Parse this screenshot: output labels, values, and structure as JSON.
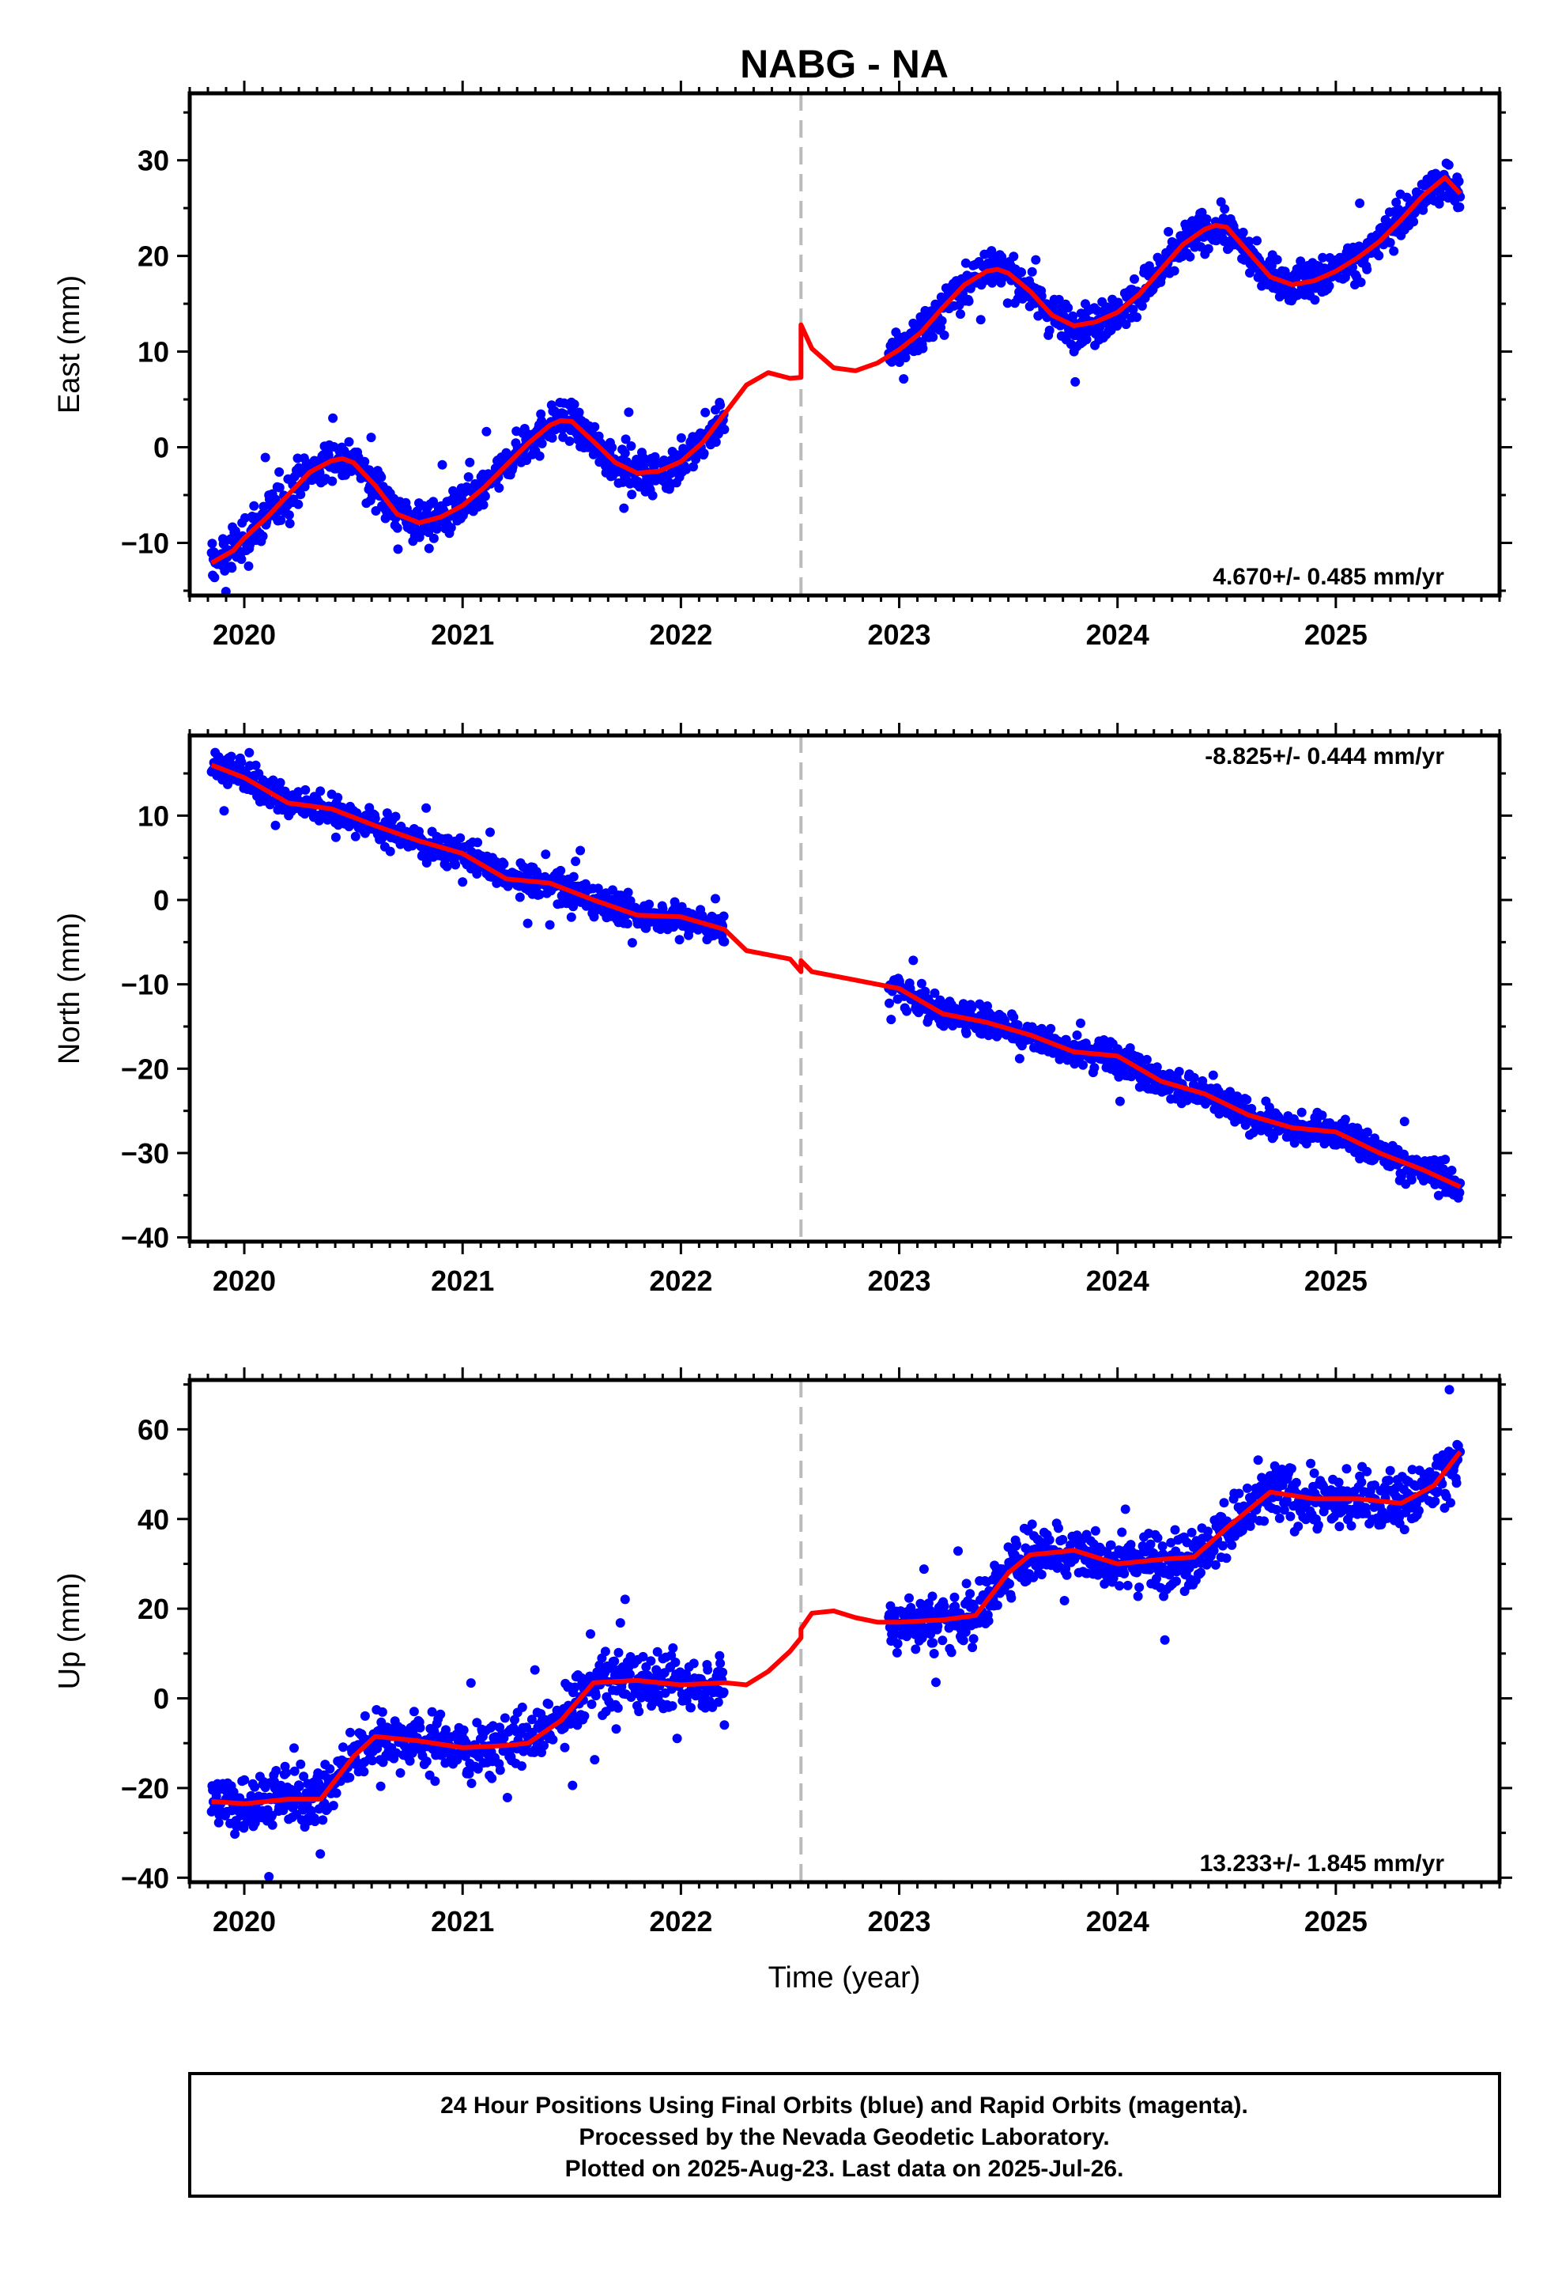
{
  "title": "NABG - NA",
  "x_axis_label": "Time (year)",
  "footer": {
    "line1": "24 Hour Positions Using Final Orbits (blue) and Rapid Orbits (magenta).",
    "line2": "Processed by the Nevada Geodetic Laboratory.",
    "line3": "Plotted on 2025-Aug-23. Last data on 2025-Jul-26."
  },
  "colors": {
    "final_orbits": "#0000ff",
    "model": "#ff0000",
    "equipment_change": "#bbbbbb",
    "frame": "#000000"
  },
  "chart_data": [
    {
      "type": "scatter",
      "component": "East",
      "ylabel": "East (mm)",
      "rate": "4.670+/- 0.485 mm/yr",
      "rate_position": "bottom-right",
      "xlim": [
        2019.75,
        2025.75
      ],
      "ylim": [
        -15.5,
        37
      ],
      "xticks": [
        2020,
        2021,
        2022,
        2023,
        2024,
        2025
      ],
      "yticks": [
        -10,
        0,
        10,
        20,
        30
      ],
      "offset_marker_x": 2022.55,
      "data_gap": [
        2022.2,
        2022.95
      ],
      "series": [
        {
          "style": "points",
          "x": [
            2019.85,
            2019.95,
            2020.0,
            2020.1,
            2020.2,
            2020.3,
            2020.4,
            2020.45,
            2020.5,
            2020.6,
            2020.7,
            2020.8,
            2020.9,
            2021.0,
            2021.1,
            2021.2,
            2021.3,
            2021.4,
            2021.45,
            2021.5,
            2021.6,
            2021.7,
            2021.8,
            2021.9,
            2022.0,
            2022.1,
            2022.2,
            2023.0,
            2023.1,
            2023.2,
            2023.3,
            2023.4,
            2023.45,
            2023.5,
            2023.6,
            2023.7,
            2023.8,
            2023.9,
            2024.0,
            2024.1,
            2024.2,
            2024.3,
            2024.4,
            2024.45,
            2024.5,
            2024.6,
            2024.7,
            2024.8,
            2024.9,
            2025.0,
            2025.1,
            2025.2,
            2025.3,
            2025.4,
            2025.5,
            2025.57
          ],
          "y": [
            -12.1,
            -10.8,
            -9.5,
            -7.4,
            -5.0,
            -2.6,
            -1.4,
            -1.2,
            -1.6,
            -4.0,
            -7.0,
            -7.9,
            -7.3,
            -6.1,
            -4.2,
            -1.9,
            0.4,
            2.3,
            2.8,
            2.7,
            0.6,
            -1.6,
            -2.7,
            -2.5,
            -1.5,
            0.5,
            3.5,
            10.2,
            12.0,
            14.6,
            17.0,
            18.4,
            18.6,
            18.2,
            16.3,
            13.8,
            12.7,
            13.1,
            14.1,
            16.0,
            18.6,
            21.2,
            22.8,
            23.2,
            23.0,
            20.4,
            17.8,
            17.0,
            17.4,
            18.4,
            19.8,
            21.5,
            23.8,
            26.3,
            28.2,
            26.5
          ]
        },
        {
          "style": "model_line",
          "x": [
            2019.85,
            2019.95,
            2020.0,
            2020.1,
            2020.2,
            2020.3,
            2020.4,
            2020.45,
            2020.5,
            2020.6,
            2020.7,
            2020.8,
            2020.9,
            2021.0,
            2021.1,
            2021.2,
            2021.3,
            2021.4,
            2021.45,
            2021.5,
            2021.6,
            2021.7,
            2021.8,
            2021.9,
            2022.0,
            2022.1,
            2022.2,
            2022.3,
            2022.4,
            2022.5,
            2022.55,
            2022.55,
            2022.6,
            2022.7,
            2022.8,
            2022.9,
            2023.0,
            2023.1,
            2023.2,
            2023.3,
            2023.4,
            2023.45,
            2023.5,
            2023.6,
            2023.7,
            2023.8,
            2023.9,
            2024.0,
            2024.1,
            2024.2,
            2024.3,
            2024.4,
            2024.45,
            2024.5,
            2024.6,
            2024.7,
            2024.8,
            2024.9,
            2025.0,
            2025.1,
            2025.2,
            2025.3,
            2025.4,
            2025.5,
            2025.57
          ],
          "y": [
            -12.1,
            -10.8,
            -9.5,
            -7.4,
            -5.0,
            -2.6,
            -1.4,
            -1.2,
            -1.6,
            -4.0,
            -7.0,
            -7.9,
            -7.3,
            -6.1,
            -4.2,
            -1.9,
            0.4,
            2.3,
            2.8,
            2.7,
            0.6,
            -1.6,
            -2.7,
            -2.5,
            -1.5,
            0.5,
            3.5,
            6.5,
            7.8,
            7.2,
            7.3,
            12.8,
            10.3,
            8.3,
            8.0,
            8.8,
            10.2,
            12.0,
            14.6,
            17.0,
            18.4,
            18.6,
            18.2,
            16.3,
            13.8,
            12.7,
            13.1,
            14.1,
            16.0,
            18.6,
            21.2,
            22.8,
            23.2,
            23.0,
            20.4,
            17.8,
            17.0,
            17.4,
            18.4,
            19.8,
            21.5,
            23.8,
            26.3,
            28.2,
            26.5
          ]
        }
      ]
    },
    {
      "type": "scatter",
      "component": "North",
      "ylabel": "North (mm)",
      "rate": "-8.825+/- 0.444 mm/yr",
      "rate_position": "top-right",
      "xlim": [
        2019.75,
        2025.75
      ],
      "ylim": [
        -40.5,
        19.5
      ],
      "xticks": [
        2020,
        2021,
        2022,
        2023,
        2024,
        2025
      ],
      "yticks": [
        -40,
        -30,
        -20,
        -10,
        0,
        10
      ],
      "offset_marker_x": 2022.55,
      "data_gap": [
        2022.2,
        2022.95
      ],
      "series": [
        {
          "style": "points",
          "x": [
            2019.85,
            2020.0,
            2020.2,
            2020.4,
            2020.6,
            2020.8,
            2021.0,
            2021.2,
            2021.4,
            2021.6,
            2021.8,
            2022.0,
            2022.2,
            2023.0,
            2023.2,
            2023.4,
            2023.6,
            2023.8,
            2024.0,
            2024.2,
            2024.4,
            2024.6,
            2024.8,
            2025.0,
            2025.2,
            2025.4,
            2025.57
          ],
          "y": [
            16.0,
            14.5,
            11.5,
            10.8,
            8.8,
            7.0,
            5.5,
            2.5,
            2.0,
            0.0,
            -1.8,
            -2.0,
            -3.5,
            -10.5,
            -13.5,
            -14.5,
            -16.0,
            -18.0,
            -18.5,
            -21.5,
            -23.0,
            -25.5,
            -27.0,
            -27.5,
            -30.0,
            -32.0,
            -34.0
          ]
        },
        {
          "style": "model_line",
          "x": [
            2019.85,
            2020.0,
            2020.2,
            2020.4,
            2020.6,
            2020.8,
            2021.0,
            2021.2,
            2021.4,
            2021.6,
            2021.8,
            2022.0,
            2022.2,
            2022.3,
            2022.4,
            2022.5,
            2022.55,
            2022.55,
            2022.6,
            2022.8,
            2023.0,
            2023.2,
            2023.4,
            2023.6,
            2023.8,
            2024.0,
            2024.2,
            2024.4,
            2024.6,
            2024.8,
            2025.0,
            2025.2,
            2025.4,
            2025.57
          ],
          "y": [
            16.0,
            14.5,
            11.5,
            10.8,
            8.8,
            7.0,
            5.5,
            2.5,
            2.0,
            0.0,
            -1.8,
            -2.0,
            -3.5,
            -6.0,
            -6.5,
            -7.0,
            -8.5,
            -7.2,
            -8.5,
            -9.5,
            -10.5,
            -13.5,
            -14.5,
            -16.0,
            -18.0,
            -18.5,
            -21.5,
            -23.0,
            -25.5,
            -27.0,
            -27.5,
            -30.0,
            -32.0,
            -34.0
          ]
        }
      ]
    },
    {
      "type": "scatter",
      "component": "Up",
      "ylabel": "Up (mm)",
      "rate": "13.233+/- 1.845 mm/yr",
      "rate_position": "bottom-right",
      "xlim": [
        2019.75,
        2025.75
      ],
      "ylim": [
        -41,
        71
      ],
      "xticks": [
        2020,
        2021,
        2022,
        2023,
        2024,
        2025
      ],
      "yticks": [
        -40,
        -20,
        0,
        20,
        40,
        60
      ],
      "offset_marker_x": 2022.55,
      "data_gap": [
        2022.2,
        2022.95
      ],
      "series": [
        {
          "style": "points",
          "x": [
            2019.85,
            2020.0,
            2020.2,
            2020.35,
            2020.5,
            2020.6,
            2020.8,
            2021.0,
            2021.2,
            2021.3,
            2021.45,
            2021.6,
            2021.8,
            2022.0,
            2022.2,
            2023.0,
            2023.2,
            2023.35,
            2023.5,
            2023.6,
            2023.8,
            2024.0,
            2024.2,
            2024.35,
            2024.5,
            2024.7,
            2024.9,
            2025.1,
            2025.3,
            2025.45,
            2025.57
          ],
          "y": [
            -23.0,
            -23.5,
            -22.5,
            -22.5,
            -13.0,
            -8.5,
            -9.5,
            -11.0,
            -10.5,
            -10.0,
            -5.0,
            3.5,
            4.0,
            3.0,
            3.5,
            17.0,
            17.5,
            18.5,
            28.0,
            32.0,
            33.0,
            30.0,
            31.0,
            31.5,
            38.0,
            46.0,
            44.5,
            44.5,
            43.5,
            47.5,
            55.0
          ]
        },
        {
          "style": "model_line",
          "x": [
            2019.85,
            2020.0,
            2020.2,
            2020.35,
            2020.5,
            2020.6,
            2020.8,
            2021.0,
            2021.2,
            2021.3,
            2021.45,
            2021.6,
            2021.8,
            2022.0,
            2022.2,
            2022.3,
            2022.4,
            2022.5,
            2022.55,
            2022.55,
            2022.6,
            2022.7,
            2022.8,
            2022.9,
            2023.0,
            2023.2,
            2023.35,
            2023.5,
            2023.6,
            2023.8,
            2024.0,
            2024.2,
            2024.35,
            2024.5,
            2024.7,
            2024.9,
            2025.1,
            2025.3,
            2025.45,
            2025.57
          ],
          "y": [
            -23.0,
            -23.5,
            -22.5,
            -22.5,
            -13.0,
            -8.5,
            -9.5,
            -11.0,
            -10.5,
            -10.0,
            -5.0,
            3.5,
            4.0,
            3.0,
            3.5,
            3.0,
            6.0,
            10.5,
            13.5,
            15.5,
            19.0,
            19.5,
            18.0,
            17.0,
            17.0,
            17.5,
            18.5,
            28.0,
            32.0,
            33.0,
            30.0,
            31.0,
            31.5,
            38.0,
            46.0,
            44.5,
            44.5,
            43.5,
            47.5,
            55.0
          ]
        }
      ]
    }
  ]
}
